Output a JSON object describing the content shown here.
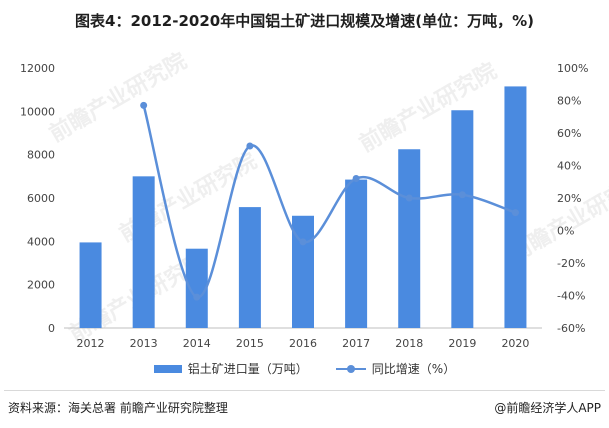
{
  "chart_data": {
    "type": "bar+line",
    "title": "图表4：2012-2020年中国铝土矿进口规模及增速(单位：万吨，%)",
    "categories": [
      "2012",
      "2013",
      "2014",
      "2015",
      "2016",
      "2017",
      "2018",
      "2019",
      "2020"
    ],
    "series": [
      {
        "name": "铝土矿进口量（万吨）",
        "type": "bar",
        "axis": "left",
        "values": [
          3950,
          7000,
          3660,
          5580,
          5180,
          6850,
          8250,
          10050,
          11150
        ]
      },
      {
        "name": "同比增速（%）",
        "type": "line",
        "axis": "right",
        "values": [
          null,
          77,
          -41,
          52,
          -7,
          32,
          20,
          22,
          11
        ]
      }
    ],
    "y_left": {
      "min": 0,
      "max": 12000,
      "ticks": [
        "0",
        "2000",
        "4000",
        "6000",
        "8000",
        "10000",
        "12000"
      ]
    },
    "y_right": {
      "min": -60,
      "max": 100,
      "ticks": [
        "-60%",
        "-40%",
        "-20%",
        "0%",
        "20%",
        "40%",
        "60%",
        "80%",
        "100%"
      ]
    },
    "bar_color": "#4A8AE0",
    "line_color": "#5B8FD9",
    "legend_position": "bottom"
  },
  "legend": {
    "bar_label": "铝土矿进口量（万吨）",
    "line_label": "同比增速（%）"
  },
  "footer": {
    "source": "资料来源：海关总署 前瞻产业研究院整理",
    "brand": "@前瞻经济学人APP"
  },
  "watermark": {
    "text": "前瞻产业研究院"
  }
}
